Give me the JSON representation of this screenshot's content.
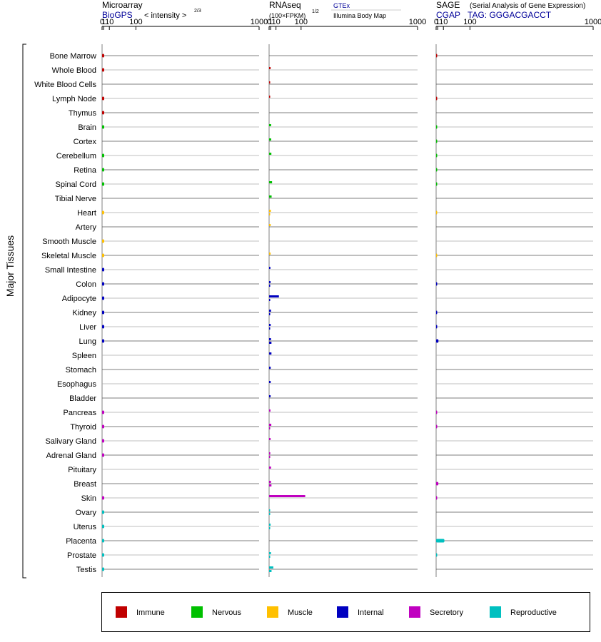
{
  "side_label": "Major Tissues",
  "panels": [
    {
      "id": "microarray",
      "title": "Microarray",
      "source": "BioGPS",
      "unit_label": "< intensity >",
      "unit_exp": "2/3",
      "source2": "",
      "source3": ""
    },
    {
      "id": "rnaseq",
      "title": "RNAseq",
      "source": "",
      "unit_label": "(100×FPKM)",
      "unit_exp": "1/2",
      "source2": "GTEx",
      "source3": "Illumina Body Map"
    },
    {
      "id": "sage",
      "title": "SAGE",
      "subtitle": "(Serial Analysis of Gene Expression)",
      "source": "CGAP",
      "source_tag": "TAG: GGGACGACCT"
    }
  ],
  "axis_ticks": [
    "0",
    "1",
    "10",
    "100",
    "1000"
  ],
  "legend": [
    {
      "label": "Immune",
      "color": "#c00000"
    },
    {
      "label": "Nervous",
      "color": "#00c000"
    },
    {
      "label": "Muscle",
      "color": "#ffc000"
    },
    {
      "label": "Internal",
      "color": "#0000c0"
    },
    {
      "label": "Secretory",
      "color": "#c000c0"
    },
    {
      "label": "Reproductive",
      "color": "#00c0c0"
    }
  ],
  "chart_data": {
    "type": "bar",
    "x_scale": "power",
    "x_ticks": [
      0,
      1,
      10,
      100,
      1000
    ],
    "xlim": [
      0,
      1000
    ],
    "categories": [
      "Bone Marrow",
      "Whole Blood",
      "White Blood Cells",
      "Lymph Node",
      "Thymus",
      "Brain",
      "Cortex",
      "Cerebellum",
      "Retina",
      "Spinal Cord",
      "Tibial Nerve",
      "Heart",
      "Artery",
      "Smooth Muscle",
      "Skeletal Muscle",
      "Small Intestine",
      "Colon",
      "Adipocyte",
      "Kidney",
      "Liver",
      "Lung",
      "Spleen",
      "Stomach",
      "Esophagus",
      "Bladder",
      "Pancreas",
      "Thyroid",
      "Salivary Gland",
      "Adrenal Gland",
      "Pituitary",
      "Breast",
      "Skin",
      "Ovary",
      "Uterus",
      "Placenta",
      "Prostate",
      "Testis"
    ],
    "groups": [
      "immune",
      "immune",
      "immune",
      "immune",
      "immune",
      "nervous",
      "nervous",
      "nervous",
      "nervous",
      "nervous",
      "nervous",
      "muscle",
      "muscle",
      "muscle",
      "muscle",
      "internal",
      "internal",
      "internal",
      "internal",
      "internal",
      "internal",
      "internal",
      "internal",
      "internal",
      "internal",
      "secretory",
      "secretory",
      "secretory",
      "secretory",
      "secretory",
      "secretory",
      "secretory",
      "reproductive",
      "reproductive",
      "reproductive",
      "reproductive",
      "reproductive"
    ],
    "microarray": [
      1.6,
      1.6,
      null,
      1.6,
      1.6,
      1.6,
      null,
      1.6,
      1.6,
      1.6,
      null,
      1.5,
      null,
      1.6,
      1.6,
      1.6,
      1.6,
      1.6,
      1.6,
      1.6,
      1.6,
      null,
      null,
      null,
      null,
      1.6,
      1.6,
      1.6,
      1.6,
      null,
      null,
      1.6,
      1.6,
      1.6,
      1.6,
      1.6,
      1.6
    ],
    "rnaseq_gtex": [
      null,
      1.0,
      0.01,
      0.01,
      null,
      1.6,
      1.7,
      1.9,
      null,
      2.8,
      2.2,
      1.3,
      1.1,
      null,
      1.0,
      0.8,
      1.0,
      17,
      1.5,
      1.1,
      1.4,
      2.0,
      1.1,
      1.1,
      1.0,
      0.9,
      1.8,
      1.0,
      0.7,
      1.5,
      1.4,
      120,
      0.6,
      1.0,
      null,
      1.4,
      4.8
    ],
    "rnaseq_ibm": [
      null,
      null,
      null,
      null,
      null,
      null,
      null,
      null,
      null,
      null,
      null,
      0.01,
      null,
      null,
      null,
      null,
      0.01,
      0.01,
      0.01,
      0.01,
      2.0,
      null,
      null,
      null,
      null,
      null,
      0.01,
      null,
      0.01,
      null,
      2.0,
      null,
      0.01,
      0.01,
      null,
      0.01,
      2.1
    ],
    "sage": [
      0.01,
      null,
      null,
      0.01,
      null,
      0.01,
      0.01,
      0.01,
      0.01,
      0.01,
      null,
      0.005,
      null,
      null,
      0.005,
      null,
      0.01,
      null,
      0.01,
      0.01,
      1.8,
      null,
      null,
      null,
      null,
      0.01,
      0.01,
      null,
      null,
      null,
      1.7,
      0.15,
      null,
      null,
      12,
      0.01,
      null
    ]
  }
}
